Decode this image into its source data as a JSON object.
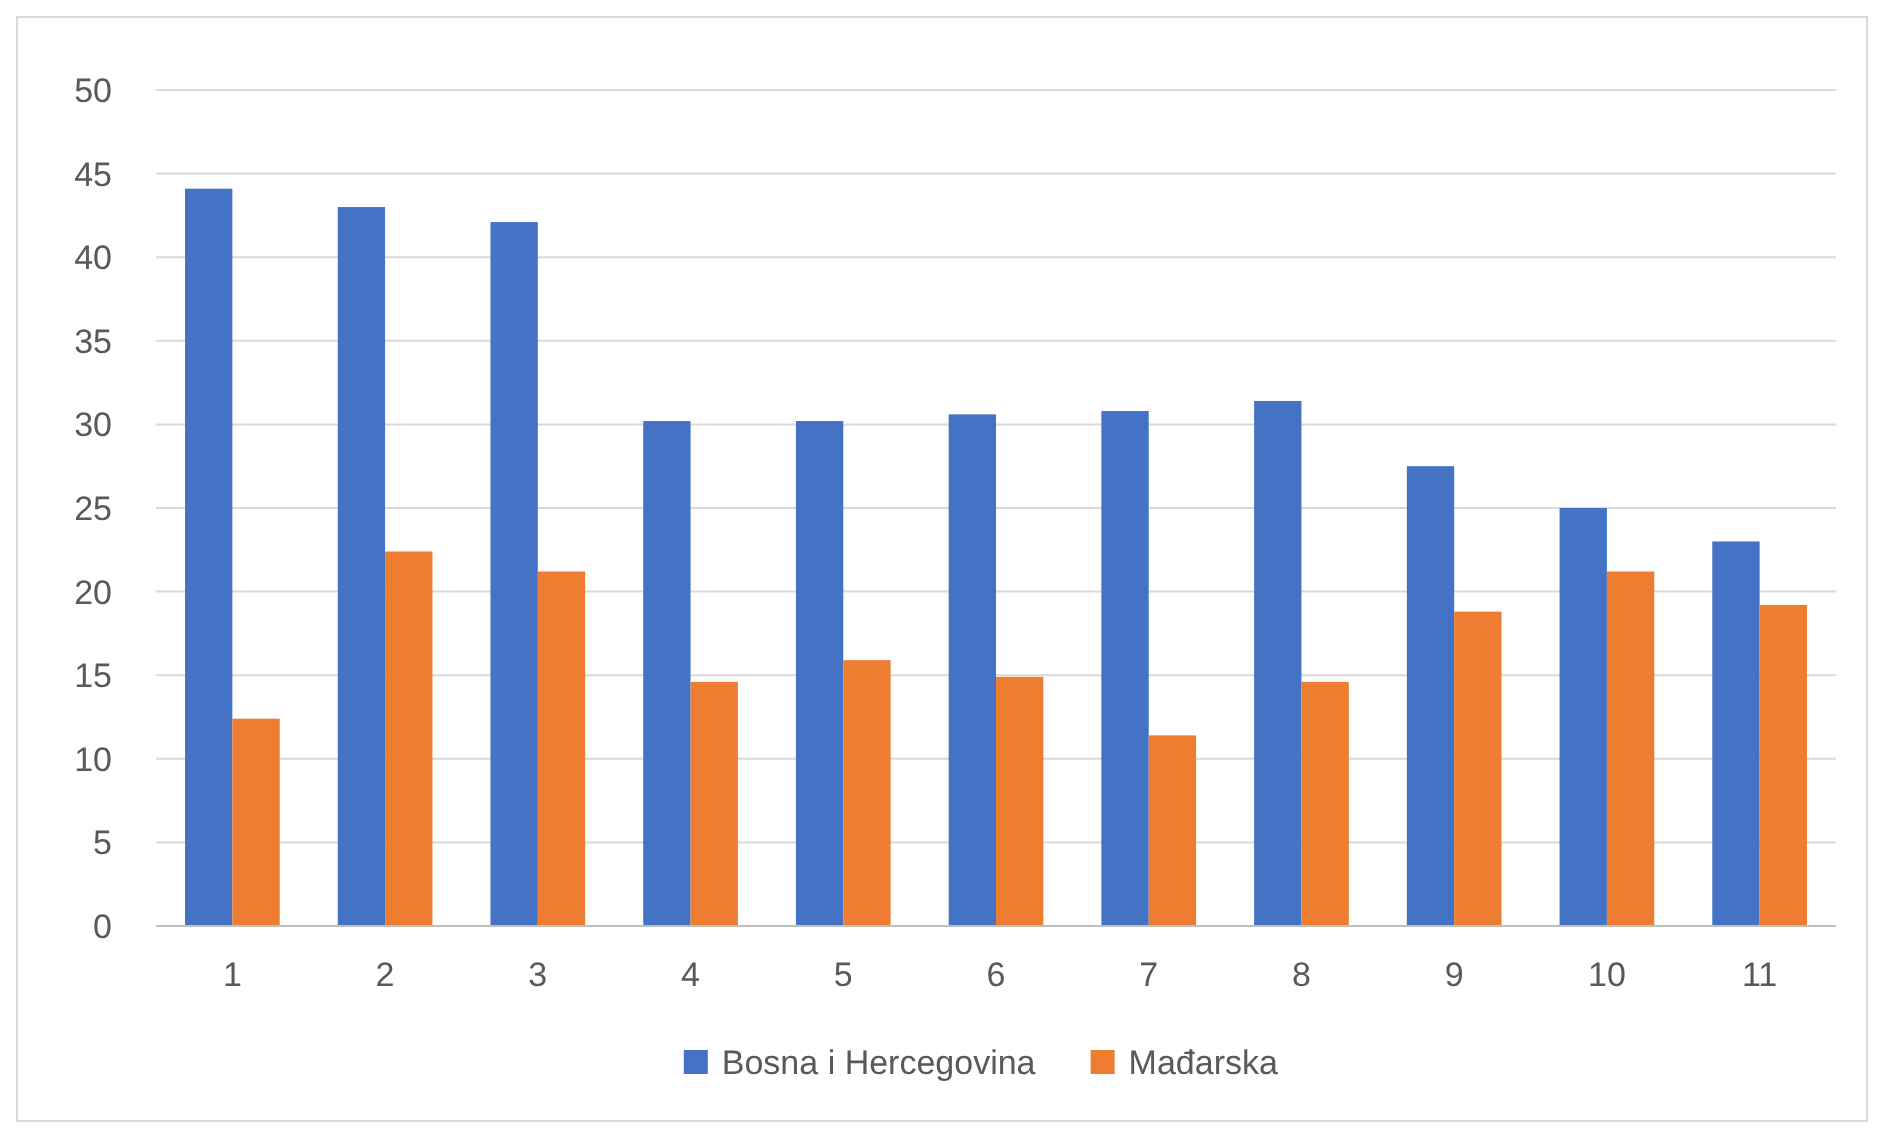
{
  "chart_data": {
    "type": "bar",
    "categories": [
      "1",
      "2",
      "3",
      "4",
      "5",
      "6",
      "7",
      "8",
      "9",
      "10",
      "11"
    ],
    "series": [
      {
        "name": "Bosna i Hercegovina",
        "color": "#4472c4",
        "values": [
          44.1,
          43.0,
          42.1,
          30.2,
          30.2,
          30.6,
          30.8,
          31.4,
          27.5,
          25.0,
          23.0
        ]
      },
      {
        "name": "Mađarska",
        "color": "#ed7d31",
        "values": [
          12.4,
          22.4,
          21.2,
          14.6,
          15.9,
          14.9,
          11.4,
          14.6,
          18.8,
          21.2,
          19.2
        ]
      }
    ],
    "ylim": [
      0,
      50
    ],
    "yticks": [
      0,
      5,
      10,
      15,
      20,
      25,
      30,
      35,
      40,
      45,
      50
    ],
    "grid": "y",
    "legend": "bottom"
  }
}
